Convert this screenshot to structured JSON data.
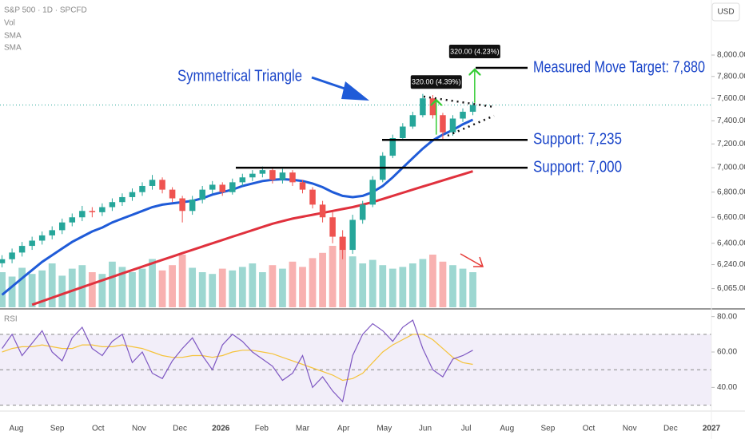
{
  "chart_data": {
    "type": "candlestick",
    "title": "S&P 500 · 1D · SPCFD",
    "currency": "USD",
    "log_scale": true,
    "up_color": "#26a69a",
    "down_color": "#ef5350",
    "x": [
      -0.35,
      -0.105,
      0.14,
      0.385,
      0.63,
      0.875,
      1.12,
      1.365,
      1.61,
      1.855,
      2.1,
      2.345,
      2.59,
      2.835,
      3.08,
      3.325,
      3.57,
      3.815,
      4.06,
      4.305,
      4.55,
      4.795,
      5.04,
      5.285,
      5.53,
      5.775,
      6.02,
      6.265,
      6.51,
      6.755,
      7.0,
      7.245,
      7.49,
      7.735,
      7.98,
      8.225,
      8.47,
      8.715,
      8.96,
      9.205,
      9.45,
      9.695,
      9.94,
      10.185,
      10.43,
      10.675,
      10.92,
      11.165
    ],
    "xlim": [
      -0.4,
      17.0
    ],
    "xticks": [
      {
        "value": 0,
        "label": "Aug"
      },
      {
        "value": 1,
        "label": "Sep"
      },
      {
        "value": 2,
        "label": "Oct"
      },
      {
        "value": 3,
        "label": "Nov"
      },
      {
        "value": 4,
        "label": "Dec"
      },
      {
        "value": 5,
        "label": "2026"
      },
      {
        "value": 6,
        "label": "Feb"
      },
      {
        "value": 7,
        "label": "Mar"
      },
      {
        "value": 8,
        "label": "Apr"
      },
      {
        "value": 9,
        "label": "May"
      },
      {
        "value": 10,
        "label": "Jun"
      },
      {
        "value": 11,
        "label": "Jul"
      },
      {
        "value": 12,
        "label": "Aug"
      },
      {
        "value": 13,
        "label": "Sep"
      },
      {
        "value": 14,
        "label": "Oct"
      },
      {
        "value": 15,
        "label": "Nov"
      },
      {
        "value": 16,
        "label": "Dec"
      },
      {
        "value": 17,
        "label": "2027"
      }
    ],
    "open": [
      6250,
      6280,
      6330,
      6380,
      6420,
      6460,
      6500,
      6560,
      6600,
      6650,
      6640,
      6680,
      6720,
      6760,
      6800,
      6850,
      6900,
      6820,
      6750,
      6650,
      6740,
      6820,
      6860,
      6800,
      6880,
      6920,
      6950,
      6980,
      6900,
      6960,
      6880,
      6820,
      6700,
      6600,
      6450,
      6350,
      6580,
      6700,
      6900,
      7100,
      7250,
      7350,
      7450,
      7600,
      7450,
      7300,
      7420,
      7480
    ],
    "high": [
      6310,
      6360,
      6410,
      6450,
      6490,
      6530,
      6590,
      6630,
      6690,
      6680,
      6710,
      6750,
      6790,
      6830,
      6880,
      6940,
      6920,
      6840,
      6770,
      6770,
      6850,
      6890,
      6880,
      6910,
      6950,
      6980,
      7010,
      7000,
      6990,
      6980,
      6900,
      6840,
      6730,
      6640,
      6500,
      6620,
      6730,
      6930,
      7130,
      7280,
      7380,
      7480,
      7640,
      7630,
      7470,
      7450,
      7510,
      7570
    ],
    "low": [
      6220,
      6250,
      6300,
      6350,
      6390,
      6430,
      6470,
      6530,
      6570,
      6600,
      6610,
      6650,
      6690,
      6730,
      6770,
      6820,
      6790,
      6720,
      6560,
      6620,
      6710,
      6790,
      6770,
      6780,
      6850,
      6890,
      6920,
      6870,
      6870,
      6850,
      6790,
      6670,
      6560,
      6400,
      6280,
      6320,
      6550,
      6680,
      6880,
      7080,
      7230,
      7330,
      7430,
      7420,
      7240,
      7270,
      7390,
      7450
    ],
    "close": [
      6280,
      6330,
      6380,
      6420,
      6460,
      6500,
      6560,
      6600,
      6650,
      6640,
      6680,
      6720,
      6760,
      6800,
      6850,
      6900,
      6820,
      6750,
      6650,
      6740,
      6820,
      6860,
      6800,
      6880,
      6920,
      6950,
      6980,
      6900,
      6960,
      6880,
      6820,
      6700,
      6600,
      6450,
      6350,
      6580,
      6700,
      6900,
      7100,
      7250,
      7350,
      7450,
      7600,
      7450,
      7300,
      7420,
      7480,
      7540
    ],
    "volume": {
      "name": "Vol",
      "values": [
        40,
        35,
        45,
        38,
        42,
        50,
        36,
        44,
        48,
        40,
        38,
        52,
        46,
        40,
        44,
        55,
        42,
        48,
        60,
        45,
        40,
        38,
        44,
        42,
        46,
        50,
        40,
        48,
        44,
        52,
        46,
        56,
        62,
        70,
        80,
        58,
        50,
        54,
        48,
        44,
        46,
        50,
        55,
        60,
        52,
        48,
        44,
        40
      ]
    },
    "series": [
      {
        "name": "SMA",
        "color": "#1f5bd8",
        "values": [
          6020,
          6080,
          6140,
          6200,
          6260,
          6310,
          6360,
          6410,
          6450,
          6490,
          6520,
          6560,
          6590,
          6620,
          6650,
          6680,
          6700,
          6710,
          6720,
          6730,
          6750,
          6780,
          6800,
          6820,
          6850,
          6870,
          6890,
          6900,
          6905,
          6900,
          6890,
          6870,
          6840,
          6800,
          6770,
          6760,
          6770,
          6800,
          6850,
          6920,
          7000,
          7080,
          7160,
          7230,
          7280,
          7320,
          7370,
          7410
        ]
      },
      {
        "name": "SMA",
        "color": "#e0313d",
        "values": [
          null,
          null,
          null,
          5950,
          5975,
          6000,
          6025,
          6050,
          6075,
          6100,
          6125,
          6150,
          6175,
          6200,
          6225,
          6250,
          6275,
          6300,
          6325,
          6350,
          6375,
          6400,
          6425,
          6450,
          6475,
          6500,
          6525,
          6550,
          6570,
          6590,
          6605,
          6620,
          6635,
          6650,
          6665,
          6680,
          6700,
          6720,
          6745,
          6770,
          6795,
          6820,
          6845,
          6870,
          6895,
          6920,
          6945,
          6970
        ]
      }
    ],
    "ylim": [
      5932,
      8540
    ],
    "yticks": [
      {
        "value": 8000,
        "label": "8,000.00"
      },
      {
        "value": 7800,
        "label": "7,800.00"
      },
      {
        "value": 7600,
        "label": "7,600.00"
      },
      {
        "value": 7400,
        "label": "7,400.00"
      },
      {
        "value": 7200,
        "label": "7,200.00"
      },
      {
        "value": 7000,
        "label": "7,000.00"
      },
      {
        "value": 6800,
        "label": "6,800.00"
      },
      {
        "value": 6600,
        "label": "6,600.00"
      },
      {
        "value": 6400,
        "label": "6,400.00"
      },
      {
        "value": 6240,
        "label": "6,240.00"
      },
      {
        "value": 6065,
        "label": "6,065.00"
      }
    ],
    "pattern_label": "Symmetrical Triangle",
    "levels": [
      {
        "label": "Measured Move Target: 7,880",
        "value": 7880
      },
      {
        "label": "Support: 7,235",
        "value": 7235
      },
      {
        "label": "Support: 7,000",
        "value": 7000
      }
    ],
    "ranges": [
      {
        "label": "320.00 (4.39%)",
        "value": 320,
        "from": 7280,
        "x": 10.27
      },
      {
        "label": "320.00 (4.23%)",
        "value": 320,
        "from": 7560,
        "x": 11.21
      }
    ],
    "rsi": {
      "name": "RSI",
      "color": "#7e57c2",
      "ma_color": "#f5c33b",
      "values": [
        62,
        70,
        58,
        65,
        72,
        60,
        55,
        68,
        74,
        62,
        58,
        66,
        70,
        54,
        60,
        48,
        45,
        55,
        62,
        68,
        58,
        50,
        64,
        70,
        66,
        60,
        56,
        52,
        44,
        48,
        58,
        40,
        46,
        38,
        32,
        58,
        70,
        76,
        72,
        66,
        74,
        78,
        62,
        50,
        46,
        56,
        58,
        61
      ],
      "ma_values": [
        60,
        62,
        63,
        63,
        64,
        63,
        62,
        62,
        64,
        64,
        63,
        63,
        64,
        63,
        62,
        60,
        58,
        57,
        57,
        58,
        58,
        57,
        58,
        60,
        61,
        61,
        60,
        59,
        57,
        55,
        53,
        51,
        49,
        47,
        44,
        45,
        48,
        54,
        60,
        64,
        67,
        70,
        70,
        67,
        62,
        57,
        54,
        53
      ],
      "levels": [
        70,
        50,
        30
      ],
      "ylim": [
        28,
        83
      ],
      "yticks": [
        {
          "value": 80,
          "label": "80.00"
        },
        {
          "value": 60,
          "label": "60.00"
        },
        {
          "value": 40,
          "label": "40.00"
        }
      ]
    }
  }
}
